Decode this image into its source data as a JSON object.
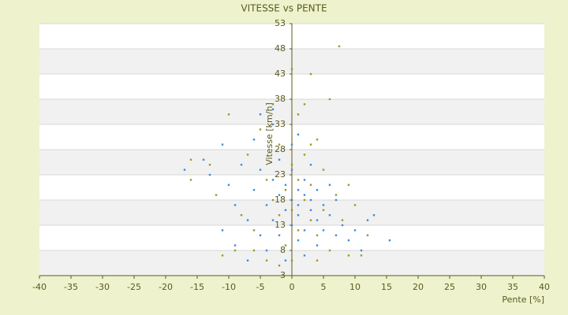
{
  "chart_data": {
    "type": "scatter",
    "title": "VITESSE vs PENTE",
    "x_label": "Pente [%]",
    "y_label": "Vitesse [km/h]",
    "xlim": [
      -40,
      40
    ],
    "xticks": [
      -40,
      -35,
      -30,
      -25,
      -20,
      -15,
      -10,
      -5,
      0,
      5,
      10,
      15,
      20,
      25,
      30,
      35,
      40
    ],
    "ylim": [
      3,
      53
    ],
    "yticks": [
      3,
      8,
      13,
      18,
      23,
      28,
      33,
      38,
      43,
      48,
      53
    ],
    "grid": true,
    "series": [
      {
        "color": "#9a9a20",
        "x": [
          -16,
          -16,
          -12,
          -10,
          -9,
          -8,
          -7,
          -6,
          -5,
          -4,
          -4,
          -3,
          -3,
          -2,
          -2,
          -1,
          -1,
          0,
          0,
          0,
          1,
          1,
          1,
          2,
          2,
          3,
          3,
          3,
          4,
          4,
          5,
          5,
          6,
          6,
          7,
          7.5,
          8,
          9,
          10,
          11,
          12,
          -11,
          -13,
          2,
          4,
          -6,
          9,
          -2,
          0,
          3
        ],
        "values": [
          26,
          22,
          19,
          35,
          8,
          15,
          27,
          12,
          32,
          22,
          6,
          18,
          37,
          15,
          29,
          20,
          9,
          44,
          25,
          16,
          35,
          12,
          22,
          27,
          18,
          43,
          14,
          21,
          30,
          11,
          24,
          16,
          38,
          8,
          19,
          48.5,
          14,
          7,
          17,
          7,
          11,
          7,
          25,
          37,
          6,
          8,
          21,
          5,
          6,
          29
        ]
      },
      {
        "color": "#3c8dd8",
        "x": [
          -17,
          -14,
          -13,
          -11,
          -10,
          -9,
          -8,
          -7,
          -6,
          -6,
          -5,
          -5,
          -4,
          -4,
          -3,
          -3,
          -3,
          -2,
          -2,
          -2,
          -1,
          -1,
          -1,
          0,
          0,
          0,
          0,
          1,
          1,
          1,
          1,
          2,
          2,
          2,
          2,
          3,
          3,
          3,
          4,
          4,
          4,
          5,
          5,
          6,
          6,
          7,
          7,
          8,
          9,
          10,
          11,
          12,
          13,
          15.5,
          -9,
          -11,
          -7,
          1,
          -3,
          -5
        ],
        "values": [
          24,
          26,
          23,
          29,
          21,
          17,
          25,
          14,
          30,
          20,
          11,
          24,
          17,
          8,
          22,
          14,
          33,
          19,
          11,
          26,
          16,
          21,
          6,
          18,
          13,
          24,
          29,
          17,
          20,
          10,
          15,
          19,
          22,
          12,
          7,
          16,
          18,
          25,
          14,
          20,
          9,
          17,
          12,
          15,
          21,
          11,
          18,
          13,
          10,
          12,
          8,
          14,
          15,
          10,
          9,
          12,
          6,
          31,
          36,
          35
        ]
      }
    ]
  }
}
